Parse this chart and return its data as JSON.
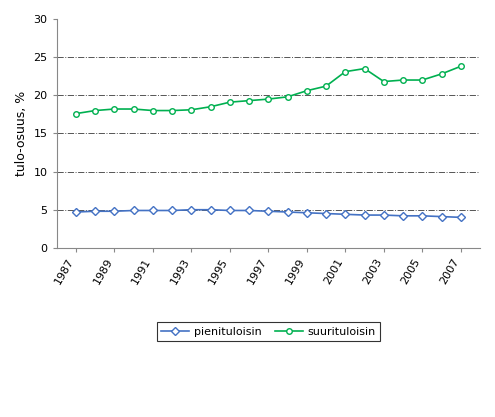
{
  "years": [
    1987,
    1988,
    1989,
    1990,
    1991,
    1992,
    1993,
    1994,
    1995,
    1996,
    1997,
    1998,
    1999,
    2000,
    2001,
    2002,
    2003,
    2004,
    2005,
    2006,
    2007
  ],
  "pienituloisin": [
    4.7,
    4.8,
    4.8,
    4.9,
    4.9,
    4.9,
    5.0,
    5.0,
    4.9,
    4.9,
    4.8,
    4.7,
    4.6,
    4.5,
    4.4,
    4.3,
    4.3,
    4.2,
    4.2,
    4.1,
    4.0
  ],
  "suurituloisin": [
    17.6,
    18.0,
    18.2,
    18.2,
    18.0,
    18.0,
    18.1,
    18.5,
    19.1,
    19.3,
    19.5,
    19.8,
    20.6,
    21.2,
    23.1,
    23.5,
    21.8,
    22.0,
    22.0,
    22.8,
    23.8
  ],
  "line1_color": "#4472c4",
  "line2_color": "#00b050",
  "marker1": "D",
  "marker2": "o",
  "ylabel": "tulo-osuus, %",
  "ylim": [
    0,
    30
  ],
  "yticks": [
    0,
    5,
    10,
    15,
    20,
    25,
    30
  ],
  "xticks": [
    1987,
    1989,
    1991,
    1993,
    1995,
    1997,
    1999,
    2001,
    2003,
    2005,
    2007
  ],
  "legend1": "pienituloisin",
  "legend2": "suurituloisin",
  "grid_color": "#555555",
  "bg_color": "#ffffff"
}
